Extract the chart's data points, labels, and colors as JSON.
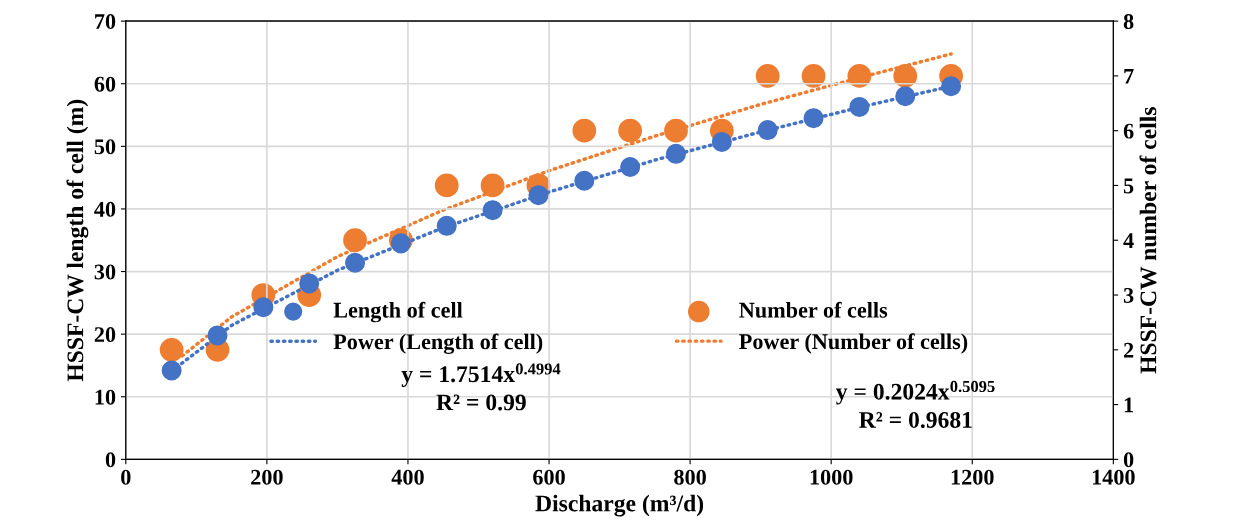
{
  "chart_data": {
    "type": "scatter",
    "xlabel": "Discharge (m³/d)",
    "ylabel": "HSSF-CW length of cell (m)",
    "y2label": "HSSF-CW number of cells",
    "xlim": [
      0,
      1400
    ],
    "xticks": [
      0,
      200,
      400,
      600,
      800,
      1000,
      1200,
      1400
    ],
    "ylim": [
      0,
      70
    ],
    "yticks": [
      0,
      10,
      20,
      30,
      40,
      50,
      60,
      70
    ],
    "y2lim": [
      0,
      8
    ],
    "y2ticks": [
      0,
      1,
      2,
      3,
      4,
      5,
      6,
      7,
      8
    ],
    "x": [
      65,
      130,
      195,
      260,
      325,
      390,
      455,
      520,
      585,
      650,
      715,
      780,
      845,
      910,
      975,
      1040,
      1105,
      1170
    ],
    "grid": true,
    "legend": "center",
    "marker": "circle",
    "series": [
      {
        "name": "Length of cell",
        "color": "#4472c4",
        "values": [
          14.2,
          19.8,
          24.3,
          28.1,
          31.4,
          34.5,
          37.3,
          39.8,
          42.2,
          44.5,
          46.7,
          48.8,
          50.7,
          52.6,
          54.5,
          56.3,
          58.0,
          59.6
        ]
      },
      {
        "name": "Number of cells",
        "color": "#ed7d31",
        "axis": "y2",
        "values": [
          2,
          2,
          3,
          3,
          4,
          4,
          5,
          5,
          5,
          6,
          6,
          6,
          6,
          7,
          7,
          7,
          7,
          7
        ]
      },
      {
        "name": "Power (Length of cell)",
        "type": "line",
        "line_style": "dotted",
        "marker": "none",
        "color": "#4472c4",
        "x": [
          65,
          150,
          300,
          450,
          600,
          750,
          900,
          1050,
          1170
        ],
        "values": [
          14.1,
          21.4,
          30.2,
          37.0,
          42.7,
          47.8,
          52.3,
          56.5,
          59.6
        ]
      },
      {
        "name": "Power (Number of cells)",
        "type": "line",
        "line_style": "dotted",
        "marker": "none",
        "color": "#ed7d31",
        "axis": "y2",
        "x": [
          80,
          150,
          300,
          450,
          600,
          750,
          900,
          1050,
          1170
        ],
        "values": [
          1.89,
          2.6,
          3.7,
          4.55,
          5.27,
          5.9,
          6.48,
          7.0,
          7.4
        ]
      }
    ],
    "annotations": [
      "y = 1.7514x$^{0.4994}$\nR² = 0.99",
      "y = 0.2024x$^{0.5095}$\nR² = 0.9681"
    ]
  }
}
